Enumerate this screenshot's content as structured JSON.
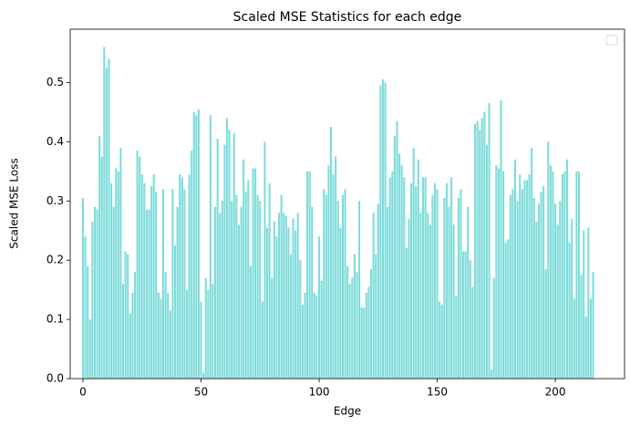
{
  "chart_data": {
    "type": "bar",
    "title": "Scaled MSE Statistics for each edge",
    "x_label": "Edge",
    "y_label": "Scaled MSE Loss",
    "color": "#7fdcda",
    "legend": "upper right",
    "x": [
      0,
      1,
      2,
      3,
      4,
      5,
      6,
      7,
      8,
      9,
      10,
      11,
      12,
      13,
      14,
      15,
      16,
      17,
      18,
      19,
      20,
      21,
      22,
      23,
      24,
      25,
      26,
      27,
      28,
      29,
      30,
      31,
      32,
      33,
      34,
      35,
      36,
      37,
      38,
      39,
      40,
      41,
      42,
      43,
      44,
      45,
      46,
      47,
      48,
      49,
      50,
      51,
      52,
      53,
      54,
      55,
      56,
      57,
      58,
      59,
      60,
      61,
      62,
      63,
      64,
      65,
      66,
      67,
      68,
      69,
      70,
      71,
      72,
      73,
      74,
      75,
      76,
      77,
      78,
      79,
      80,
      81,
      82,
      83,
      84,
      85,
      86,
      87,
      88,
      89,
      90,
      91,
      92,
      93,
      94,
      95,
      96,
      97,
      98,
      99,
      100,
      101,
      102,
      103,
      104,
      105,
      106,
      107,
      108,
      109,
      110,
      111,
      112,
      113,
      114,
      115,
      116,
      117,
      118,
      119,
      120,
      121,
      122,
      123,
      124,
      125,
      126,
      127,
      128,
      129,
      130,
      131,
      132,
      133,
      134,
      135,
      136,
      137,
      138,
      139,
      140,
      141,
      142,
      143,
      144,
      145,
      146,
      147,
      148,
      149,
      150,
      151,
      152,
      153,
      154,
      155,
      156,
      157,
      158,
      159,
      160,
      161,
      162,
      163,
      164,
      165,
      166,
      167,
      168,
      169,
      170,
      171,
      172,
      173,
      174,
      175,
      176,
      177,
      178,
      179,
      180,
      181,
      182,
      183,
      184,
      185,
      186,
      187,
      188,
      189,
      190,
      191,
      192,
      193,
      194,
      195,
      196,
      197,
      198,
      199,
      200,
      201,
      202,
      203,
      204,
      205,
      206,
      207,
      208,
      209,
      210,
      211,
      212,
      213,
      214,
      215,
      216
    ],
    "values": [
      0.305,
      0.24,
      0.19,
      0.1,
      0.265,
      0.29,
      0.285,
      0.41,
      0.375,
      0.56,
      0.525,
      0.54,
      0.33,
      0.29,
      0.355,
      0.35,
      0.39,
      0.16,
      0.215,
      0.21,
      0.11,
      0.145,
      0.18,
      0.385,
      0.375,
      0.345,
      0.33,
      0.285,
      0.285,
      0.325,
      0.345,
      0.315,
      0.145,
      0.135,
      0.32,
      0.18,
      0.145,
      0.115,
      0.32,
      0.225,
      0.29,
      0.345,
      0.34,
      0.32,
      0.15,
      0.345,
      0.385,
      0.45,
      0.445,
      0.455,
      0.13,
      0.01,
      0.17,
      0.15,
      0.445,
      0.16,
      0.29,
      0.405,
      0.28,
      0.3,
      0.395,
      0.44,
      0.42,
      0.3,
      0.415,
      0.31,
      0.26,
      0.29,
      0.37,
      0.315,
      0.335,
      0.19,
      0.355,
      0.355,
      0.31,
      0.3,
      0.13,
      0.4,
      0.255,
      0.33,
      0.17,
      0.265,
      0.24,
      0.28,
      0.31,
      0.28,
      0.275,
      0.255,
      0.21,
      0.27,
      0.25,
      0.28,
      0.2,
      0.125,
      0.145,
      0.35,
      0.35,
      0.29,
      0.145,
      0.14,
      0.24,
      0.165,
      0.32,
      0.31,
      0.36,
      0.425,
      0.345,
      0.375,
      0.3,
      0.255,
      0.31,
      0.32,
      0.19,
      0.16,
      0.17,
      0.21,
      0.18,
      0.3,
      0.12,
      0.12,
      0.145,
      0.155,
      0.185,
      0.28,
      0.21,
      0.295,
      0.495,
      0.505,
      0.5,
      0.29,
      0.34,
      0.35,
      0.41,
      0.435,
      0.38,
      0.36,
      0.34,
      0.22,
      0.27,
      0.33,
      0.39,
      0.325,
      0.37,
      0.28,
      0.34,
      0.34,
      0.28,
      0.26,
      0.31,
      0.33,
      0.32,
      0.13,
      0.125,
      0.305,
      0.33,
      0.29,
      0.34,
      0.26,
      0.14,
      0.305,
      0.32,
      0.215,
      0.215,
      0.29,
      0.2,
      0.155,
      0.43,
      0.435,
      0.42,
      0.44,
      0.45,
      0.395,
      0.465,
      0.015,
      0.17,
      0.36,
      0.355,
      0.47,
      0.35,
      0.23,
      0.235,
      0.31,
      0.32,
      0.37,
      0.3,
      0.345,
      0.32,
      0.335,
      0.335,
      0.345,
      0.39,
      0.305,
      0.265,
      0.295,
      0.315,
      0.325,
      0.185,
      0.4,
      0.36,
      0.35,
      0.295,
      0.26,
      0.3,
      0.345,
      0.35,
      0.37,
      0.23,
      0.27,
      0.135,
      0.35,
      0.35,
      0.175,
      0.25,
      0.105,
      0.255,
      0.135,
      0.18
    ],
    "xlim": [
      -5.4,
      229.3
    ],
    "xticks": [
      0,
      50,
      100,
      150,
      200
    ],
    "ylim": [
      0,
      0.59
    ],
    "yticks": [
      {
        "value": 0,
        "label": "0.0"
      },
      0.1,
      0.2,
      0.3,
      0.4,
      0.5
    ]
  }
}
